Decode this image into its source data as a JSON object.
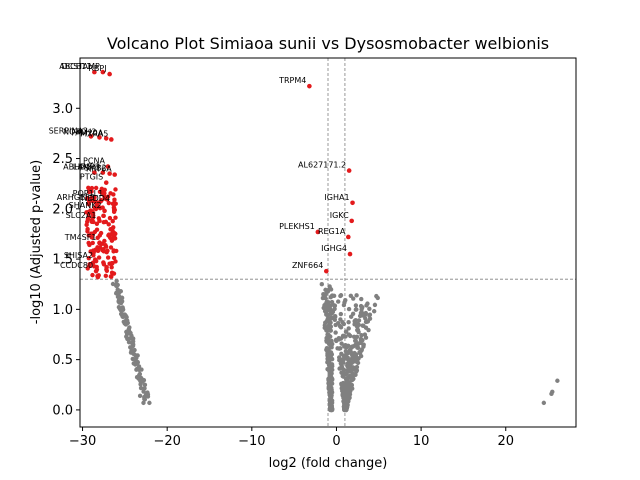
{
  "chart_data": {
    "type": "scatter",
    "title": "Volcano Plot Simiaoa sunii vs Dysosmobacter welbionis",
    "xlabel": "log2 (fold change)",
    "ylabel": "-log10 (Adjusted p-value)",
    "xlim": [
      -30.3,
      28.3
    ],
    "ylim": [
      -0.17,
      3.5
    ],
    "x_ticks": [
      -30,
      -20,
      -10,
      0,
      10,
      20
    ],
    "y_ticks": [
      0.0,
      0.5,
      1.0,
      1.5,
      2.0,
      2.5,
      3.0
    ],
    "grid": false,
    "thresholds": {
      "pvalue_line": 1.3,
      "fc_lines": [
        -1,
        1
      ]
    },
    "colors": {
      "significant": "#e31a1c",
      "not_significant": "#808080",
      "threshold": "#808080"
    },
    "significant_labeled": [
      {
        "label": "ABCB11",
        "x": -28.6,
        "y": 3.36
      },
      {
        "label": "DCSTAMP",
        "x": -27.6,
        "y": 3.36
      },
      {
        "label": "RBPJ",
        "x": -26.8,
        "y": 3.34
      },
      {
        "label": "TRPM4",
        "x": -3.2,
        "y": 3.22
      },
      {
        "label": "SERPINA3",
        "x": -29.0,
        "y": 2.72
      },
      {
        "label": "NOTCH2",
        "x": -28.0,
        "y": 2.71
      },
      {
        "label": "FAM20A",
        "x": -27.2,
        "y": 2.7
      },
      {
        "label": "MXRA5",
        "x": -26.6,
        "y": 2.69
      },
      {
        "label": "AL627171.2",
        "x": 1.5,
        "y": 2.38
      },
      {
        "label": "PCNA",
        "x": -27.0,
        "y": 2.42
      },
      {
        "label": "ABHD5",
        "x": -28.6,
        "y": 2.36
      },
      {
        "label": "LAMP3",
        "x": -27.6,
        "y": 2.36
      },
      {
        "label": "PSMB2",
        "x": -26.8,
        "y": 2.35
      },
      {
        "label": "KRT6A",
        "x": -26.2,
        "y": 2.34
      },
      {
        "label": "PTGIS",
        "x": -27.2,
        "y": 2.26
      },
      {
        "label": "IGHA1",
        "x": 1.9,
        "y": 2.06
      },
      {
        "label": "POP1L1",
        "x": -27.2,
        "y": 2.1
      },
      {
        "label": "ARHGEF3",
        "x": -28.2,
        "y": 2.06
      },
      {
        "label": "NEDD4",
        "x": -26.4,
        "y": 2.05
      },
      {
        "label": "SHANK2",
        "x": -27.4,
        "y": 1.98
      },
      {
        "label": "IGKC",
        "x": 1.8,
        "y": 1.88
      },
      {
        "label": "SLC2A1",
        "x": -28.0,
        "y": 1.88
      },
      {
        "label": "PLEKHS1",
        "x": -2.2,
        "y": 1.77
      },
      {
        "label": "REG1A",
        "x": 1.4,
        "y": 1.72
      },
      {
        "label": "TM4SF1",
        "x": -28.0,
        "y": 1.66
      },
      {
        "label": "IGHG4",
        "x": 1.6,
        "y": 1.55
      },
      {
        "label": "SHISA2",
        "x": -28.4,
        "y": 1.48
      },
      {
        "label": "ZNF664",
        "x": -1.2,
        "y": 1.38
      },
      {
        "label": "CCDC80",
        "x": -28.4,
        "y": 1.38
      }
    ]
  }
}
